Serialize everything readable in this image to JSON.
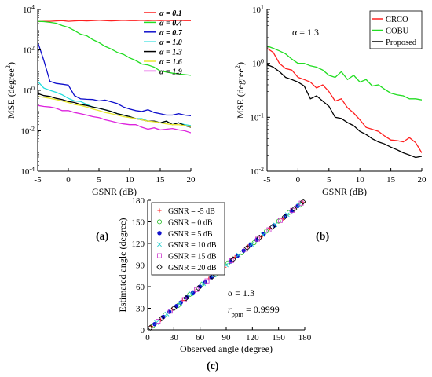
{
  "figure": {
    "panel_labels": [
      "(a)",
      "(b)",
      "(c)"
    ]
  },
  "chart_data": [
    {
      "type": "line",
      "panel": "(a)",
      "xlabel": "GSNR (dB)",
      "ylabel": "MSE (degree",
      "ylabel_sup": "2",
      "ylabel_close": ")",
      "xlim": [
        -5,
        20
      ],
      "ylim_log10": [
        -4,
        4
      ],
      "yscale": "log",
      "xticks": [
        "-5",
        "0",
        "5",
        "10",
        "15",
        "20"
      ],
      "yticks": [
        {
          "base": "10",
          "exp": "-4"
        },
        {
          "base": "10",
          "exp": "-2"
        },
        {
          "base": "10",
          "exp": "0"
        },
        {
          "base": "10",
          "exp": "2"
        },
        {
          "base": "10",
          "exp": "4"
        }
      ],
      "legend_position": "top-right",
      "x": [
        -5,
        -4,
        -3,
        -2,
        -1,
        0,
        1,
        2,
        3,
        4,
        5,
        6,
        7,
        8,
        9,
        10,
        11,
        12,
        13,
        14,
        15,
        16,
        17,
        18,
        19,
        20
      ],
      "series": [
        {
          "name": "α = 0.1",
          "color": "#ff2020",
          "values": [
            2500,
            2600,
            2600,
            2700,
            2800,
            2600,
            2700,
            2800,
            2700,
            2800,
            2900,
            2800,
            2700,
            2800,
            2900,
            2800,
            2800,
            2900,
            2800,
            2900,
            2800,
            2900,
            2800,
            2900,
            2800,
            2800
          ]
        },
        {
          "name": "α = 0.4",
          "color": "#22dd22",
          "values": [
            2600,
            2500,
            2300,
            2100,
            1600,
            1300,
            900,
            600,
            500,
            320,
            230,
            150,
            110,
            75,
            60,
            40,
            30,
            20,
            18,
            14,
            9,
            8,
            7,
            6.5,
            6,
            5.5
          ]
        },
        {
          "name": "α = 0.7",
          "color": "#1010cc",
          "values": [
            250,
            30,
            2.8,
            2.2,
            2.0,
            1.8,
            0.55,
            0.38,
            0.36,
            0.35,
            0.3,
            0.33,
            0.27,
            0.22,
            0.15,
            0.12,
            0.1,
            0.09,
            0.11,
            0.08,
            0.07,
            0.06,
            0.06,
            0.07,
            0.06,
            0.055
          ]
        },
        {
          "name": "α = 1.0",
          "color": "#22dddd",
          "values": [
            2.8,
            1.3,
            1.0,
            0.8,
            0.6,
            0.4,
            0.3,
            0.28,
            0.2,
            0.15,
            0.13,
            0.11,
            0.09,
            0.07,
            0.06,
            0.05,
            0.04,
            0.04,
            0.03,
            0.03,
            0.025,
            0.03,
            0.02,
            0.025,
            0.02,
            0.018
          ]
        },
        {
          "name": "α = 1.3",
          "color": "#000000",
          "values": [
            0.7,
            0.55,
            0.5,
            0.4,
            0.35,
            0.28,
            0.25,
            0.2,
            0.18,
            0.15,
            0.13,
            0.11,
            0.09,
            0.07,
            0.06,
            0.05,
            0.04,
            0.035,
            0.03,
            0.03,
            0.025,
            0.03,
            0.02,
            0.025,
            0.018,
            0.015
          ]
        },
        {
          "name": "α = 1.6",
          "color": "#e8e830",
          "values": [
            0.5,
            0.45,
            0.4,
            0.35,
            0.3,
            0.25,
            0.2,
            0.18,
            0.15,
            0.12,
            0.1,
            0.08,
            0.07,
            0.06,
            0.05,
            0.045,
            0.04,
            0.035,
            0.03,
            0.028,
            0.025,
            0.022,
            0.02,
            0.02,
            0.018,
            0.016
          ]
        },
        {
          "name": "α = 1.9",
          "color": "#dd22dd",
          "values": [
            0.18,
            0.16,
            0.15,
            0.13,
            0.1,
            0.1,
            0.08,
            0.07,
            0.06,
            0.05,
            0.045,
            0.035,
            0.03,
            0.025,
            0.022,
            0.02,
            0.02,
            0.015,
            0.012,
            0.014,
            0.011,
            0.012,
            0.013,
            0.011,
            0.01,
            0.008
          ]
        }
      ]
    },
    {
      "type": "line",
      "panel": "(b)",
      "annotation": "α = 1.3",
      "xlabel": "GSNR (dB)",
      "ylabel": "MSE (degree",
      "ylabel_sup": "2",
      "ylabel_close": ")",
      "xlim": [
        -5,
        20
      ],
      "ylim_log10": [
        -2,
        1
      ],
      "yscale": "log",
      "xticks": [
        "-5",
        "0",
        "5",
        "10",
        "15",
        "20"
      ],
      "yticks": [
        {
          "base": "10",
          "exp": "-2"
        },
        {
          "base": "10",
          "exp": "-1"
        },
        {
          "base": "10",
          "exp": "0"
        },
        {
          "base": "10",
          "exp": "1"
        }
      ],
      "legend_position": "top-right",
      "x": [
        -5,
        -4,
        -3,
        -2,
        -1,
        0,
        1,
        2,
        3,
        4,
        5,
        6,
        7,
        8,
        9,
        10,
        11,
        12,
        13,
        14,
        15,
        16,
        17,
        18,
        19,
        20
      ],
      "series": [
        {
          "name": "CRCO",
          "color": "#ff2020",
          "values": [
            1.9,
            1.6,
            1.0,
            0.8,
            0.75,
            0.55,
            0.5,
            0.45,
            0.35,
            0.4,
            0.3,
            0.2,
            0.22,
            0.15,
            0.12,
            0.09,
            0.065,
            0.06,
            0.055,
            0.045,
            0.038,
            0.037,
            0.035,
            0.042,
            0.034,
            0.022
          ]
        },
        {
          "name": "COBU",
          "color": "#22dd22",
          "values": [
            2.1,
            1.9,
            1.7,
            1.5,
            1.2,
            1.0,
            1.0,
            0.9,
            0.85,
            0.75,
            0.6,
            0.55,
            0.7,
            0.5,
            0.6,
            0.45,
            0.5,
            0.38,
            0.4,
            0.33,
            0.28,
            0.26,
            0.25,
            0.22,
            0.22,
            0.21
          ]
        },
        {
          "name": "Proposed",
          "color": "#000000",
          "values": [
            0.95,
            0.85,
            0.7,
            0.55,
            0.5,
            0.45,
            0.38,
            0.22,
            0.25,
            0.2,
            0.16,
            0.1,
            0.095,
            0.08,
            0.07,
            0.055,
            0.048,
            0.04,
            0.035,
            0.032,
            0.028,
            0.025,
            0.022,
            0.02,
            0.018,
            0.019
          ]
        }
      ]
    },
    {
      "type": "scatter",
      "panel": "(c)",
      "xlabel": "Observed angle (degree)",
      "ylabel": "Estimated angle (degree)",
      "xlim": [
        0,
        180
      ],
      "ylim": [
        0,
        180
      ],
      "xticks": [
        "0",
        "30",
        "60",
        "90",
        "120",
        "150",
        "180"
      ],
      "yticks": [
        "0",
        "30",
        "60",
        "90",
        "120",
        "150",
        "180"
      ],
      "annotation_alpha": "α = 1.3",
      "annotation_r": "r",
      "annotation_r_sub": "ppm",
      "annotation_r_value": "= 0.9999",
      "legend_position": "top-left",
      "series": [
        {
          "name": "GSNR = -5 dB",
          "marker": "plus",
          "color": "#ff2020",
          "x": [
            4,
            15,
            28,
            40,
            55,
            70,
            88,
            100,
            115,
            130,
            140,
            155,
            170,
            178
          ],
          "y": [
            5,
            14,
            29,
            41,
            54,
            71,
            87,
            101,
            116,
            129,
            141,
            154,
            171,
            177
          ]
        },
        {
          "name": "GSNR = 0 dB",
          "marker": "circle",
          "color": "#22bb22",
          "x": [
            6,
            20,
            35,
            48,
            62,
            78,
            92,
            108,
            122,
            136,
            150,
            162,
            175
          ],
          "y": [
            6,
            21,
            34,
            49,
            63,
            77,
            93,
            107,
            121,
            137,
            151,
            163,
            174
          ]
        },
        {
          "name": "GSNR = 5 dB",
          "marker": "dot",
          "color": "#1010cc",
          "x": [
            8,
            18,
            25,
            33,
            38,
            45,
            52,
            60,
            66,
            73,
            80,
            86,
            95,
            103,
            110,
            118,
            125,
            133,
            145,
            158,
            165,
            172
          ],
          "y": [
            8,
            18,
            25,
            33,
            38,
            45,
            52,
            60,
            66,
            73,
            80,
            86,
            95,
            103,
            110,
            118,
            125,
            133,
            145,
            158,
            165,
            172
          ]
        },
        {
          "name": "GSNR = 10 dB",
          "marker": "cross",
          "color": "#22cccc",
          "x": [
            10,
            22,
            37,
            50,
            64,
            76,
            90,
            104,
            119,
            132,
            146,
            160,
            173
          ],
          "y": [
            10,
            22,
            37,
            50,
            64,
            76,
            90,
            104,
            119,
            132,
            146,
            160,
            173
          ]
        },
        {
          "name": "GSNR = 15 dB",
          "marker": "square",
          "color": "#cc33cc",
          "x": [
            12,
            26,
            42,
            56,
            68,
            82,
            96,
            112,
            126,
            139,
            152,
            166,
            176
          ],
          "y": [
            12,
            26,
            42,
            56,
            68,
            82,
            96,
            112,
            126,
            139,
            152,
            166,
            176
          ]
        },
        {
          "name": "GSNR = 20 dB",
          "marker": "diamond",
          "color": "#000000",
          "x": [
            3,
            16,
            30,
            44,
            58,
            74,
            84,
            98,
            114,
            128,
            143,
            157,
            168,
            178
          ],
          "y": [
            3,
            16,
            30,
            44,
            58,
            74,
            84,
            98,
            114,
            128,
            143,
            157,
            168,
            178
          ]
        }
      ]
    }
  ]
}
